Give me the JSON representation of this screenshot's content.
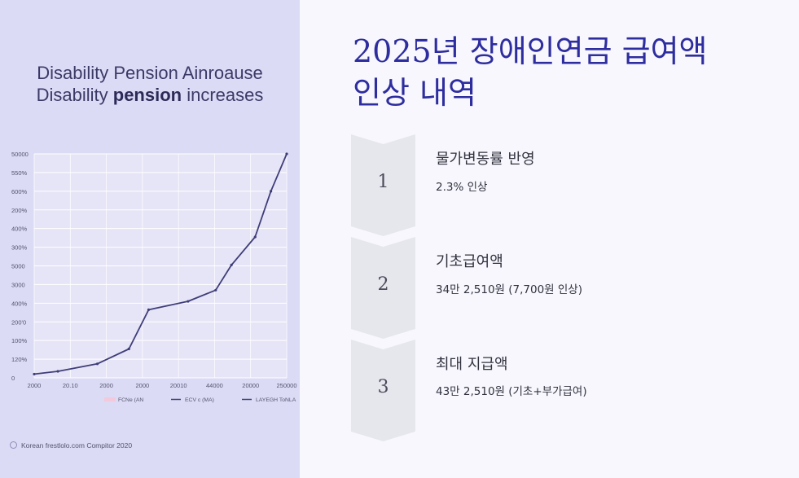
{
  "left_panel": {
    "title_line1": "Disability Pension Ainroause",
    "title_line2_pre": "Disability ",
    "title_line2_bold": "pension",
    "title_line2_post": " increases",
    "source": "Korean frestlolo.com Compitor 2020"
  },
  "right_panel": {
    "title_line1": "2025년 장애인연금 급여액",
    "title_line2": "인상 내역",
    "steps": [
      {
        "number": "1",
        "heading": "물가변동률 반영",
        "detail": "2.3% 인상"
      },
      {
        "number": "2",
        "heading": "기초급여액",
        "detail": "34만 2,510원 (7,700원 인상)"
      },
      {
        "number": "3",
        "heading": "최대 지급액",
        "detail": "43만 2,510원 (기초+부가급여)"
      }
    ]
  },
  "colors": {
    "left_bg": "#dcdbf6",
    "title_blue": "#2e2d9f",
    "line": "#3f3d78",
    "step_bg": "#e6e6ed"
  },
  "chart_data": {
    "type": "line",
    "title": "",
    "y_tick_labels": [
      "0",
      "120%",
      "100%",
      "200'0",
      "400%",
      "3000",
      "5000",
      "300%",
      "400%",
      "200%",
      "600%",
      "550%",
      "50000"
    ],
    "x_tick_labels": [
      "2000",
      "20.10",
      "2000",
      "2000",
      "20010",
      "44000",
      "20000",
      "250000"
    ],
    "legend": [
      "FCNe (AN",
      "ECV c (MA)",
      "LAYEGH ToNLA"
    ],
    "legend_position": "bottom",
    "grid": true,
    "y_range": [
      0,
      12
    ],
    "series": [
      {
        "x": [
          0,
          0.6,
          1.6,
          2.4,
          2.9,
          3.9,
          4.6,
          5.0,
          5.6,
          6.0,
          6.4
        ],
        "y": [
          0.2,
          0.35,
          0.75,
          1.55,
          3.65,
          4.1,
          4.7,
          6.05,
          7.55,
          10.0,
          12.0
        ]
      }
    ],
    "x_range": [
      0,
      6.4
    ]
  }
}
